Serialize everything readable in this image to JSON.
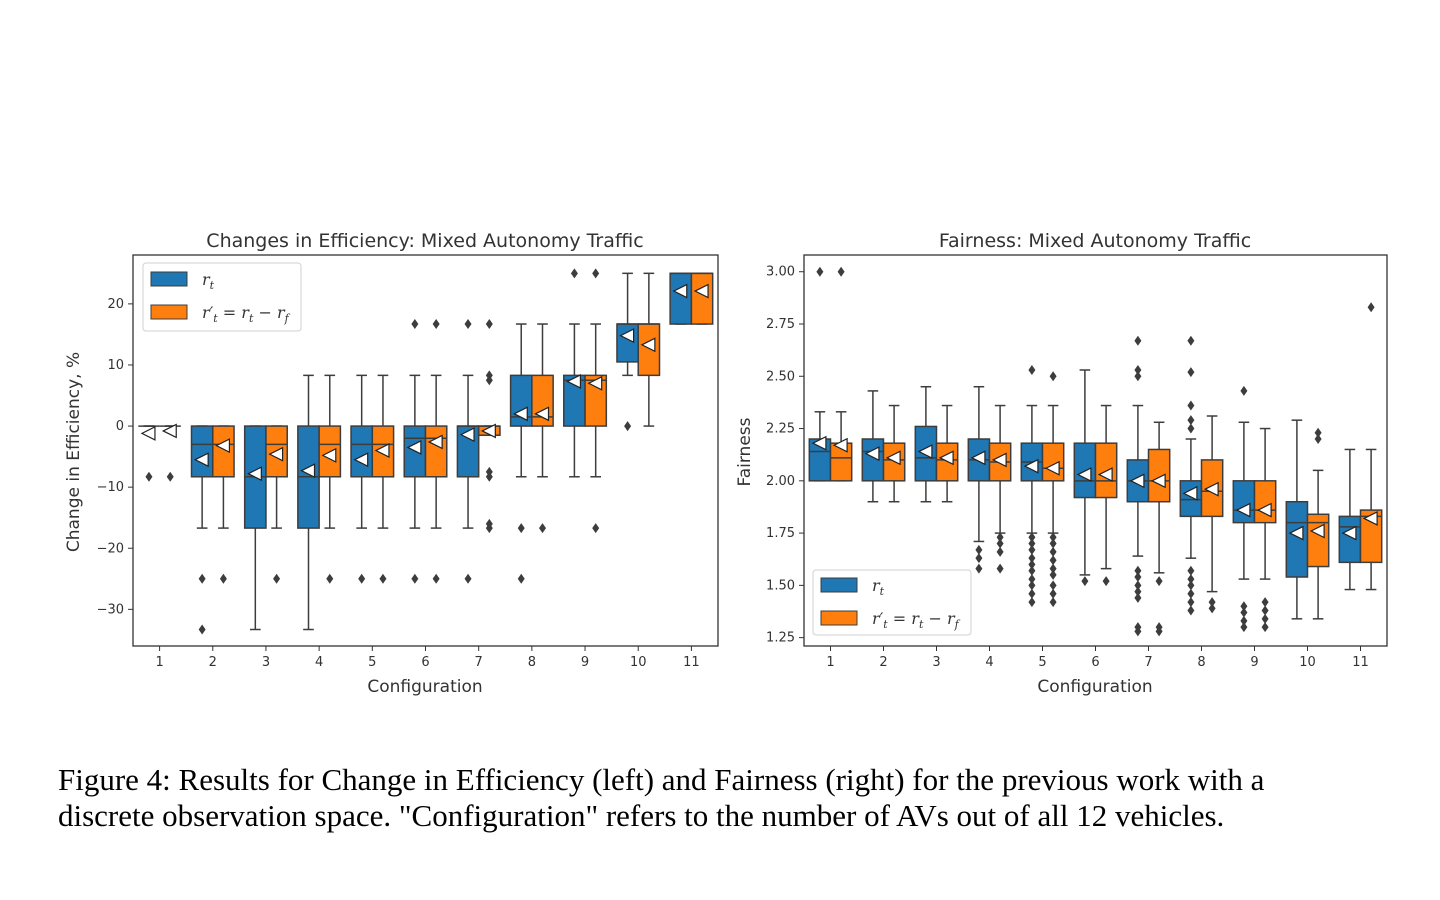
{
  "colors": {
    "series_1": "#1f77b4",
    "series_2": "#ff7f0e",
    "box_line": "#3d3d3d",
    "outlier": "#3d3d3d"
  },
  "chart_data": [
    {
      "type": "box",
      "title": "Changes in Efficiency: Mixed Autonomy Traffic",
      "xlabel": "Configuration",
      "ylabel": "Change in Efficiency, %",
      "ylim": [
        -36,
        28
      ],
      "yticks": [
        20,
        10,
        0,
        -10,
        -20,
        -30
      ],
      "ytick_labels": [
        "20",
        "10",
        "0",
        "−10",
        "−20",
        "−30"
      ],
      "categories": [
        "1",
        "2",
        "3",
        "4",
        "5",
        "6",
        "7",
        "8",
        "9",
        "10",
        "11"
      ],
      "legend": {
        "position": "top-left",
        "entries": [
          "r_t",
          "r'_t = r_t − r_f"
        ]
      },
      "series": [
        {
          "boxes": [
            {
              "q1": 0,
              "med": 0,
              "q3": 0,
              "wlo": 0,
              "whi": 0,
              "mean": -1.2,
              "out": [
                -8.3
              ]
            },
            {
              "q1": -8.3,
              "med": -3,
              "q3": 0,
              "wlo": -16.7,
              "whi": 0,
              "mean": -5.5,
              "out": [
                -25,
                -33.3
              ]
            },
            {
              "q1": -16.7,
              "med": -8.3,
              "q3": 0,
              "wlo": -33.3,
              "whi": 0,
              "mean": -7.8,
              "out": []
            },
            {
              "q1": -16.7,
              "med": -8.3,
              "q3": 0,
              "wlo": -33.3,
              "whi": 8.3,
              "mean": -7.3,
              "out": []
            },
            {
              "q1": -8.3,
              "med": -3,
              "q3": 0,
              "wlo": -16.7,
              "whi": 8.3,
              "mean": -5.5,
              "out": [
                -25
              ]
            },
            {
              "q1": -8.3,
              "med": -2,
              "q3": 0,
              "wlo": -16.7,
              "whi": 8.3,
              "mean": -3.5,
              "out": [
                -25,
                16.7
              ]
            },
            {
              "q1": -8.3,
              "med": 0,
              "q3": 0,
              "wlo": -16.7,
              "whi": 8.3,
              "mean": -1.4,
              "out": [
                -25,
                16.7
              ]
            },
            {
              "q1": 0,
              "med": 1.5,
              "q3": 8.3,
              "wlo": -8.3,
              "whi": 16.7,
              "mean": 2,
              "out": [
                -16.7,
                -25
              ]
            },
            {
              "q1": 0,
              "med": 7.5,
              "q3": 8.3,
              "wlo": -8.3,
              "whi": 16.7,
              "mean": 7.3,
              "out": [
                25
              ]
            },
            {
              "q1": 10.5,
              "med": 16.7,
              "q3": 16.7,
              "wlo": 8.3,
              "whi": 25,
              "mean": 14.8,
              "out": [
                0
              ]
            },
            {
              "q1": 16.7,
              "med": 25,
              "q3": 25,
              "wlo": 16.7,
              "whi": 25,
              "mean": 22.1,
              "out": []
            }
          ]
        },
        {
          "boxes": [
            {
              "q1": 0,
              "med": 0,
              "q3": 0,
              "wlo": 0,
              "whi": 0,
              "mean": -0.8,
              "out": [
                -8.3
              ]
            },
            {
              "q1": -8.3,
              "med": -3,
              "q3": 0,
              "wlo": -16.7,
              "whi": 0,
              "mean": -3.2,
              "out": [
                -25
              ]
            },
            {
              "q1": -8.3,
              "med": -3,
              "q3": 0,
              "wlo": -16.7,
              "whi": 0,
              "mean": -4.6,
              "out": [
                -25
              ]
            },
            {
              "q1": -8.3,
              "med": -3,
              "q3": 0,
              "wlo": -16.7,
              "whi": 8.3,
              "mean": -4.8,
              "out": [
                -25
              ]
            },
            {
              "q1": -8.3,
              "med": -3,
              "q3": 0,
              "wlo": -16.7,
              "whi": 8.3,
              "mean": -4,
              "out": [
                -25
              ]
            },
            {
              "q1": -8.3,
              "med": -2,
              "q3": 0,
              "wlo": -16.7,
              "whi": 8.3,
              "mean": -2.6,
              "out": [
                -25,
                16.7
              ]
            },
            {
              "q1": -1.5,
              "med": 0,
              "q3": 0,
              "wlo": -1.5,
              "whi": 0,
              "mean": -0.8,
              "out": [
                -8.3,
                -7.5,
                -16.7,
                -16,
                8.3,
                7.5,
                16.7
              ]
            },
            {
              "q1": 0,
              "med": 1.5,
              "q3": 8.3,
              "wlo": -8.3,
              "whi": 16.7,
              "mean": 2,
              "out": [
                -16.7
              ]
            },
            {
              "q1": 0,
              "med": 7.5,
              "q3": 8.3,
              "wlo": -8.3,
              "whi": 16.7,
              "mean": 7,
              "out": [
                25,
                -16.7
              ]
            },
            {
              "q1": 8.3,
              "med": 16.7,
              "q3": 16.7,
              "wlo": 0,
              "whi": 25,
              "mean": 13.3,
              "out": []
            },
            {
              "q1": 16.7,
              "med": 25,
              "q3": 25,
              "wlo": 16.7,
              "whi": 25,
              "mean": 22.1,
              "out": []
            }
          ]
        }
      ]
    },
    {
      "type": "box",
      "title": "Fairness: Mixed Autonomy Traffic",
      "xlabel": "Configuration",
      "ylabel": "Fairness",
      "ylim": [
        1.21,
        3.08
      ],
      "yticks": [
        3.0,
        2.75,
        2.5,
        2.25,
        2.0,
        1.75,
        1.5,
        1.25
      ],
      "ytick_labels": [
        "3.00",
        "2.75",
        "2.50",
        "2.25",
        "2.00",
        "1.75",
        "1.50",
        "1.25"
      ],
      "categories": [
        "1",
        "2",
        "3",
        "4",
        "5",
        "6",
        "7",
        "8",
        "9",
        "10",
        "11"
      ],
      "legend": {
        "position": "lower-left",
        "entries": [
          "r_t",
          "r'_t = r_t − r_f"
        ]
      },
      "series": [
        {
          "boxes": [
            {
              "q1": 2.0,
              "med": 2.14,
              "q3": 2.2,
              "wlo": 2.0,
              "whi": 2.33,
              "mean": 2.18,
              "out": [
                3.0
              ]
            },
            {
              "q1": 2.0,
              "med": 2.14,
              "q3": 2.2,
              "wlo": 1.9,
              "whi": 2.43,
              "mean": 2.13,
              "out": []
            },
            {
              "q1": 2.0,
              "med": 2.11,
              "q3": 2.26,
              "wlo": 1.9,
              "whi": 2.45,
              "mean": 2.14,
              "out": []
            },
            {
              "q1": 2.0,
              "med": 2.1,
              "q3": 2.2,
              "wlo": 1.71,
              "whi": 2.45,
              "mean": 2.11,
              "out": [
                1.67,
                1.63,
                1.58
              ]
            },
            {
              "q1": 2.0,
              "med": 2.09,
              "q3": 2.18,
              "wlo": 1.75,
              "whi": 2.36,
              "mean": 2.07,
              "out": [
                2.53,
                1.73,
                1.7,
                1.67,
                1.63,
                1.6,
                1.57,
                1.53,
                1.5,
                1.46,
                1.42
              ]
            },
            {
              "q1": 1.92,
              "med": 2.0,
              "q3": 2.18,
              "wlo": 1.55,
              "whi": 2.53,
              "mean": 2.03,
              "out": [
                1.52
              ]
            },
            {
              "q1": 1.9,
              "med": 2.0,
              "q3": 2.1,
              "wlo": 1.64,
              "whi": 2.36,
              "mean": 2.0,
              "out": [
                2.67,
                2.53,
                2.5,
                1.57,
                1.54,
                1.5,
                1.47,
                1.44,
                1.3,
                1.28
              ]
            },
            {
              "q1": 1.83,
              "med": 1.91,
              "q3": 2.0,
              "wlo": 1.63,
              "whi": 2.2,
              "mean": 1.94,
              "out": [
                2.67,
                2.52,
                2.36,
                2.29,
                2.25,
                1.57,
                1.53,
                1.5,
                1.46,
                1.42,
                1.38
              ]
            },
            {
              "q1": 1.8,
              "med": 1.86,
              "q3": 2.0,
              "wlo": 1.53,
              "whi": 2.28,
              "mean": 1.86,
              "out": [
                2.43,
                1.4,
                1.37,
                1.33,
                1.3
              ]
            },
            {
              "q1": 1.54,
              "med": 1.8,
              "q3": 1.9,
              "wlo": 1.34,
              "whi": 2.29,
              "mean": 1.75,
              "out": []
            },
            {
              "q1": 1.61,
              "med": 1.78,
              "q3": 1.83,
              "wlo": 1.48,
              "whi": 2.15,
              "mean": 1.75,
              "out": []
            }
          ]
        },
        {
          "boxes": [
            {
              "q1": 2.0,
              "med": 2.11,
              "q3": 2.18,
              "wlo": 2.0,
              "whi": 2.33,
              "mean": 2.17,
              "out": [
                3.0
              ]
            },
            {
              "q1": 2.0,
              "med": 2.1,
              "q3": 2.18,
              "wlo": 1.9,
              "whi": 2.36,
              "mean": 2.11,
              "out": []
            },
            {
              "q1": 2.0,
              "med": 2.1,
              "q3": 2.18,
              "wlo": 1.9,
              "whi": 2.36,
              "mean": 2.11,
              "out": []
            },
            {
              "q1": 2.0,
              "med": 2.09,
              "q3": 2.18,
              "wlo": 1.75,
              "whi": 2.36,
              "mean": 2.1,
              "out": [
                1.73,
                1.7,
                1.66,
                1.58
              ]
            },
            {
              "q1": 2.0,
              "med": 2.06,
              "q3": 2.18,
              "wlo": 1.75,
              "whi": 2.36,
              "mean": 2.06,
              "out": [
                2.5,
                1.73,
                1.7,
                1.66,
                1.62,
                1.58,
                1.55,
                1.5,
                1.46,
                1.42
              ]
            },
            {
              "q1": 1.92,
              "med": 2.0,
              "q3": 2.18,
              "wlo": 1.58,
              "whi": 2.36,
              "mean": 2.03,
              "out": [
                1.52
              ]
            },
            {
              "q1": 1.9,
              "med": 2.0,
              "q3": 2.15,
              "wlo": 1.56,
              "whi": 2.28,
              "mean": 2.0,
              "out": [
                1.52,
                1.3,
                1.28
              ]
            },
            {
              "q1": 1.83,
              "med": 1.95,
              "q3": 2.1,
              "wlo": 1.47,
              "whi": 2.31,
              "mean": 1.96,
              "out": [
                1.42,
                1.39
              ]
            },
            {
              "q1": 1.8,
              "med": 1.86,
              "q3": 2.0,
              "wlo": 1.53,
              "whi": 2.25,
              "mean": 1.86,
              "out": [
                1.42,
                1.38,
                1.34,
                1.3
              ]
            },
            {
              "q1": 1.59,
              "med": 1.8,
              "q3": 1.84,
              "wlo": 1.34,
              "whi": 2.05,
              "mean": 1.76,
              "out": [
                2.23,
                2.2
              ]
            },
            {
              "q1": 1.61,
              "med": 1.83,
              "q3": 1.86,
              "wlo": 1.48,
              "whi": 2.15,
              "mean": 1.82,
              "out": [
                2.83
              ]
            }
          ]
        }
      ]
    }
  ],
  "caption": {
    "line1": "Figure 4: Results for Change in Efficiency (left) and Fairness (right) for the previous work with a",
    "line2": "discrete observation space. \"Configuration\" refers to the number of AVs out of all 12 vehicles."
  }
}
